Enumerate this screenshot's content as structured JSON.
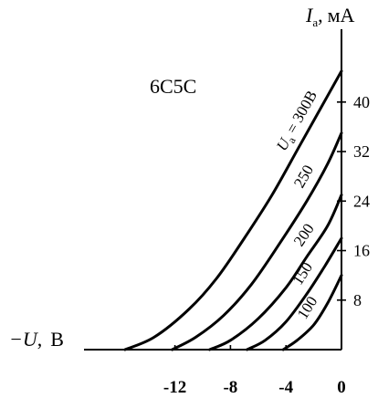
{
  "chart_data": {
    "type": "line",
    "title": "6C5C",
    "xlabel_symbol": "−U",
    "xlabel_unit": "B",
    "ylabel_symbol": "I",
    "ylabel_subscript": "a",
    "ylabel_unit": "мА",
    "xlim": [
      -20.5,
      0
    ],
    "ylim": [
      0,
      49
    ],
    "x_ticks": [
      {
        "value": -12,
        "label": "-12"
      },
      {
        "value": -8,
        "label": "-8"
      },
      {
        "value": -4,
        "label": "-4"
      },
      {
        "value": 0,
        "label": "0"
      }
    ],
    "y_ticks": [
      {
        "value": 8,
        "label": "8"
      },
      {
        "value": 16,
        "label": "16"
      },
      {
        "value": 24,
        "label": "24"
      },
      {
        "value": 32,
        "label": "32"
      },
      {
        "value": 40,
        "label": "40"
      }
    ],
    "series": [
      {
        "name": "300B",
        "label_prefix": "U",
        "label_sub": "a",
        "label_rest": " = 300B",
        "x": [
          -15.6,
          -13.5,
          -11,
          -9,
          -7,
          -5,
          -3,
          -1.5,
          0
        ],
        "y": [
          0,
          2,
          6.5,
          11.5,
          18,
          25,
          33,
          39,
          45
        ]
      },
      {
        "name": "250",
        "label": "250",
        "x": [
          -12.2,
          -10.5,
          -8.5,
          -6.5,
          -4.5,
          -2.5,
          -1,
          0
        ],
        "y": [
          0,
          2,
          5.5,
          10.5,
          17,
          24,
          30,
          35
        ]
      },
      {
        "name": "200",
        "label": "200",
        "x": [
          -9.5,
          -8,
          -6,
          -4,
          -2.5,
          -1,
          0
        ],
        "y": [
          0,
          1.5,
          5,
          10,
          15,
          20,
          25
        ]
      },
      {
        "name": "150",
        "label": "150",
        "x": [
          -6.8,
          -5.5,
          -4,
          -2.5,
          -1.2,
          0
        ],
        "y": [
          0,
          1.5,
          4.5,
          9,
          13.5,
          18
        ]
      },
      {
        "name": "100",
        "label": "100",
        "x": [
          -4.2,
          -3.2,
          -2,
          -1,
          0
        ],
        "y": [
          0,
          1.5,
          4,
          7.5,
          12
        ]
      }
    ]
  }
}
